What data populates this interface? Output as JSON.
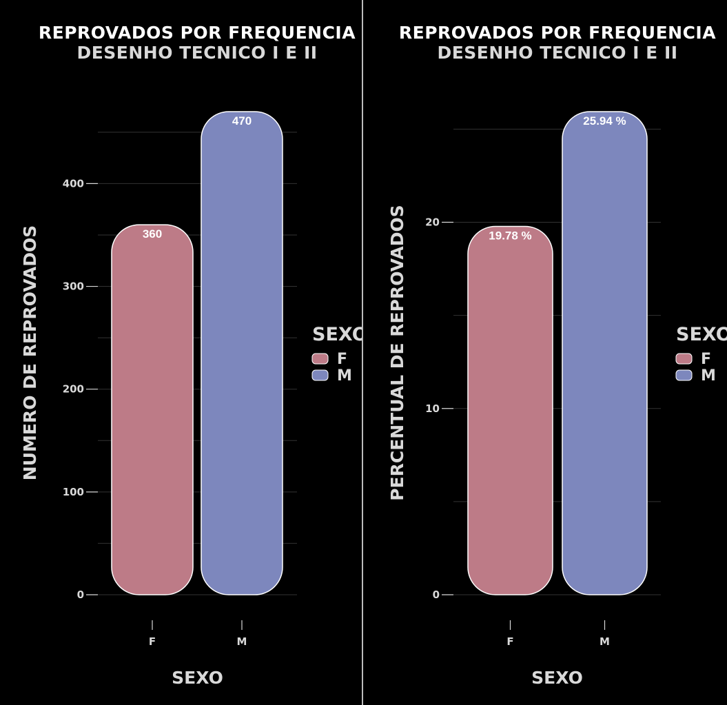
{
  "chart_data": [
    {
      "type": "bar",
      "title": "REPROVADOS POR FREQUENCIA",
      "subtitle": "DESENHO TECNICO I E II",
      "xlabel": "SEXO",
      "ylabel": "NUMERO DE REPROVADOS",
      "categories": [
        "F",
        "M"
      ],
      "values": [
        360,
        470
      ],
      "value_labels": [
        "360",
        "470"
      ],
      "ylim": [
        0,
        470
      ],
      "yticks": [
        0,
        100,
        200,
        300,
        400
      ],
      "ytick_labels": [
        "0",
        "100",
        "200",
        "300",
        "400"
      ],
      "colors": [
        "#bd7b87",
        "#7d87bd"
      ],
      "grid": true,
      "legend": {
        "title": "SEXO",
        "entries": [
          "F",
          "M"
        ],
        "position": "right"
      }
    },
    {
      "type": "bar",
      "title": "REPROVADOS POR FREQUENCIA",
      "subtitle": "DESENHO TECNICO I E II",
      "xlabel": "SEXO",
      "ylabel": "PERCENTUAL DE REPROVADOS",
      "categories": [
        "F",
        "M"
      ],
      "values": [
        19.78,
        25.94
      ],
      "value_labels": [
        "19.78 %",
        "25.94 %"
      ],
      "ylim": [
        0,
        25.94
      ],
      "yticks": [
        0,
        10,
        20
      ],
      "ytick_labels": [
        "0",
        "10",
        "20"
      ],
      "colors": [
        "#bd7b87",
        "#7d87bd"
      ],
      "grid": true,
      "legend": {
        "title": "SEXO",
        "entries": [
          "F",
          "M"
        ],
        "position": "right"
      }
    }
  ]
}
